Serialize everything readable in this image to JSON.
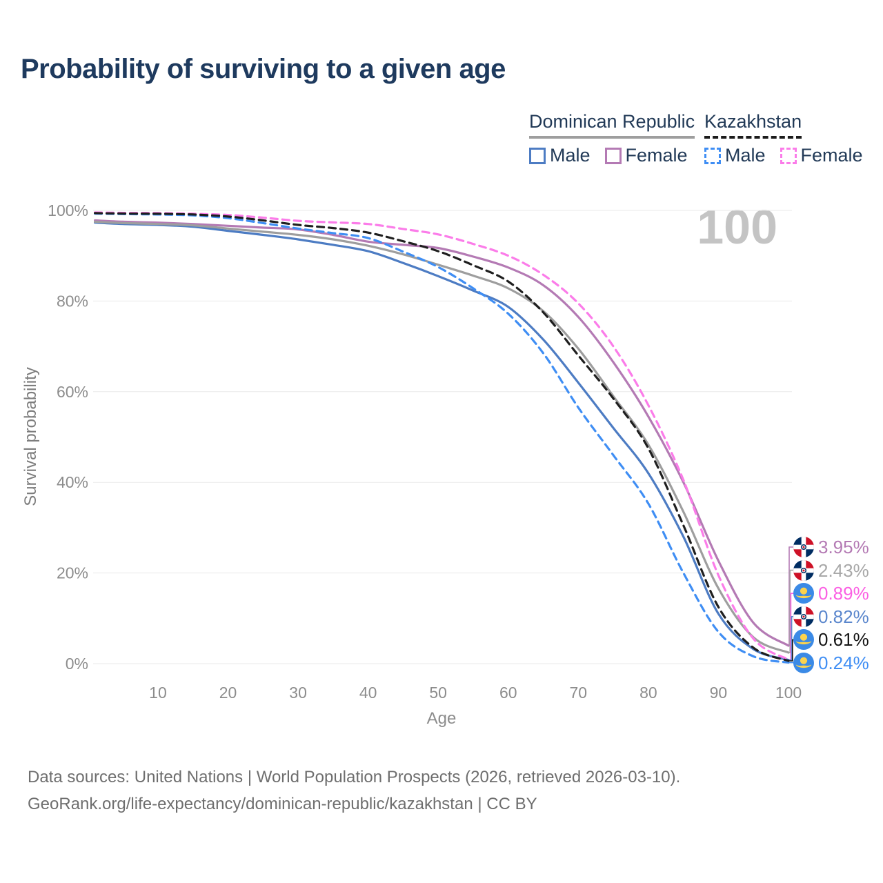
{
  "header": {
    "title": "Probability of surviving to a given age"
  },
  "legend": {
    "groups": [
      {
        "name": "Dominican Republic",
        "line_style": "solid",
        "line_color": "#9e9e9e",
        "items": [
          {
            "label": "Male",
            "color": "#4d7cc3",
            "dashed": false
          },
          {
            "label": "Female",
            "color": "#b47ab4",
            "dashed": false
          }
        ]
      },
      {
        "name": "Kazakhstan",
        "line_style": "dashed",
        "line_color": "#1c1c1c",
        "items": [
          {
            "label": "Male",
            "color": "#3f8ef4",
            "dashed": true
          },
          {
            "label": "Female",
            "color": "#fb7ce9",
            "dashed": true
          }
        ]
      }
    ]
  },
  "chart_data": {
    "type": "line",
    "title": "Probability of surviving to a given age",
    "xlabel": "Age",
    "ylabel": "Survival probability",
    "xlim": [
      0,
      100
    ],
    "ylim": [
      0,
      100
    ],
    "x_ticks": [
      10,
      20,
      30,
      40,
      50,
      60,
      70,
      80,
      90,
      100
    ],
    "y_ticks": [
      "0%",
      "20%",
      "40%",
      "60%",
      "80%",
      "100%"
    ],
    "grid": "horizontal",
    "legend_position": "top-right",
    "hover_age_indicator": "100",
    "series": [
      {
        "key": "dr-male",
        "name": "Dominican Republic Male",
        "color": "#4d7cc3",
        "dashed": false,
        "points": [
          [
            1,
            97.3
          ],
          [
            5,
            97.0
          ],
          [
            10,
            96.8
          ],
          [
            15,
            96.4
          ],
          [
            20,
            95.5
          ],
          [
            25,
            94.6
          ],
          [
            30,
            93.6
          ],
          [
            35,
            92.4
          ],
          [
            40,
            91.0
          ],
          [
            45,
            88.4
          ],
          [
            50,
            85.5
          ],
          [
            55,
            82.3
          ],
          [
            60,
            78.7
          ],
          [
            65,
            71.5
          ],
          [
            70,
            62.0
          ],
          [
            75,
            52.0
          ],
          [
            80,
            42.0
          ],
          [
            85,
            28.0
          ],
          [
            90,
            11.0
          ],
          [
            95,
            3.2
          ],
          [
            100,
            0.82
          ]
        ]
      },
      {
        "key": "dr-female",
        "name": "Dominican Republic Female",
        "color": "#b47ab4",
        "dashed": false,
        "points": [
          [
            1,
            97.8
          ],
          [
            5,
            97.5
          ],
          [
            10,
            97.3
          ],
          [
            15,
            97.0
          ],
          [
            20,
            96.6
          ],
          [
            25,
            96.2
          ],
          [
            30,
            95.8
          ],
          [
            35,
            94.6
          ],
          [
            40,
            93.1
          ],
          [
            45,
            92.4
          ],
          [
            50,
            91.7
          ],
          [
            55,
            89.8
          ],
          [
            60,
            87.4
          ],
          [
            65,
            83.5
          ],
          [
            70,
            76.5
          ],
          [
            75,
            66.5
          ],
          [
            80,
            54.5
          ],
          [
            85,
            40.0
          ],
          [
            90,
            22.7
          ],
          [
            95,
            9.0
          ],
          [
            100,
            3.95
          ]
        ]
      },
      {
        "key": "dr-all",
        "name": "Dominican Republic",
        "color": "#9e9e9e",
        "dashed": false,
        "points": [
          [
            1,
            97.5
          ],
          [
            5,
            97.2
          ],
          [
            10,
            97.0
          ],
          [
            15,
            96.7
          ],
          [
            20,
            96.0
          ],
          [
            25,
            95.3
          ],
          [
            30,
            94.6
          ],
          [
            35,
            93.6
          ],
          [
            40,
            92.2
          ],
          [
            45,
            90.3
          ],
          [
            50,
            88.0
          ],
          [
            55,
            85.6
          ],
          [
            60,
            82.8
          ],
          [
            65,
            77.8
          ],
          [
            70,
            69.5
          ],
          [
            75,
            59.0
          ],
          [
            80,
            48.3
          ],
          [
            85,
            33.5
          ],
          [
            90,
            16.6
          ],
          [
            95,
            5.8
          ],
          [
            100,
            2.43
          ]
        ]
      },
      {
        "key": "kz-male",
        "name": "Kazakhstan Male",
        "color": "#3f8ef4",
        "dashed": true,
        "points": [
          [
            1,
            99.3
          ],
          [
            5,
            99.2
          ],
          [
            10,
            99.1
          ],
          [
            15,
            98.9
          ],
          [
            20,
            98.3
          ],
          [
            25,
            97.2
          ],
          [
            30,
            96.0
          ],
          [
            35,
            95.0
          ],
          [
            40,
            93.9
          ],
          [
            45,
            90.9
          ],
          [
            50,
            87.5
          ],
          [
            55,
            82.8
          ],
          [
            60,
            77.2
          ],
          [
            65,
            68.5
          ],
          [
            70,
            56.5
          ],
          [
            75,
            46.0
          ],
          [
            80,
            35.3
          ],
          [
            85,
            20.0
          ],
          [
            90,
            7.0
          ],
          [
            95,
            1.6
          ],
          [
            100,
            0.24
          ]
        ]
      },
      {
        "key": "kz-female",
        "name": "Kazakhstan Female",
        "color": "#fb7ce9",
        "dashed": true,
        "points": [
          [
            1,
            99.55
          ],
          [
            5,
            99.45
          ],
          [
            10,
            99.4
          ],
          [
            15,
            99.25
          ],
          [
            20,
            99.0
          ],
          [
            25,
            98.4
          ],
          [
            30,
            97.7
          ],
          [
            35,
            97.35
          ],
          [
            40,
            97.0
          ],
          [
            45,
            95.9
          ],
          [
            50,
            94.7
          ],
          [
            55,
            92.6
          ],
          [
            60,
            90.0
          ],
          [
            65,
            85.8
          ],
          [
            70,
            79.5
          ],
          [
            75,
            70.0
          ],
          [
            80,
            57.0
          ],
          [
            85,
            40.5
          ],
          [
            90,
            19.5
          ],
          [
            95,
            5.5
          ],
          [
            100,
            0.89
          ]
        ]
      },
      {
        "key": "kz-all",
        "name": "Kazakhstan",
        "color": "#1f1f1f",
        "dashed": true,
        "points": [
          [
            1,
            99.4
          ],
          [
            5,
            99.3
          ],
          [
            10,
            99.25
          ],
          [
            15,
            99.1
          ],
          [
            20,
            98.65
          ],
          [
            25,
            97.8
          ],
          [
            30,
            96.8
          ],
          [
            35,
            96.1
          ],
          [
            40,
            95.1
          ],
          [
            45,
            93.2
          ],
          [
            50,
            91.0
          ],
          [
            55,
            87.9
          ],
          [
            60,
            84.3
          ],
          [
            65,
            77.5
          ],
          [
            70,
            68.0
          ],
          [
            75,
            58.5
          ],
          [
            80,
            47.5
          ],
          [
            85,
            30.5
          ],
          [
            90,
            12.5
          ],
          [
            95,
            3.5
          ],
          [
            100,
            0.61
          ]
        ]
      }
    ],
    "end_labels": [
      {
        "key": "dr-female",
        "flag": "dominican-republic",
        "value": "3.95%",
        "pct": 3.95,
        "color": "#b47ab4"
      },
      {
        "key": "dr-all",
        "flag": "dominican-republic",
        "value": "2.43%",
        "pct": 2.43,
        "color": "#a8a8a8"
      },
      {
        "key": "kz-female",
        "flag": "kazakhstan",
        "value": "0.89%",
        "pct": 0.89,
        "color": "#fb5fe3"
      },
      {
        "key": "dr-male",
        "flag": "dominican-republic",
        "value": "0.82%",
        "pct": 0.82,
        "color": "#5b87cd"
      },
      {
        "key": "kz-all",
        "flag": "kazakhstan",
        "value": "0.61%",
        "pct": 0.61,
        "color": "#141414"
      },
      {
        "key": "kz-male",
        "flag": "kazakhstan",
        "value": "0.24%",
        "pct": 0.24,
        "color": "#3f8ef4"
      }
    ]
  },
  "footer": {
    "line1": "Data sources: United Nations | World Population Prospects (2026, retrieved 2026-03-10).",
    "line2": "GeoRank.org/life-expectancy/dominican-republic/kazakhstan | CC BY"
  }
}
